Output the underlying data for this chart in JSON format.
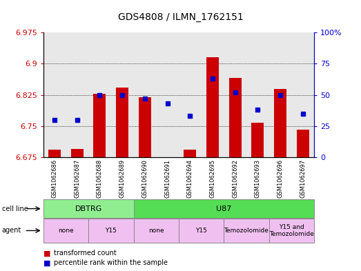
{
  "title": "GDS4808 / ILMN_1762151",
  "samples": [
    "GSM1062686",
    "GSM1062687",
    "GSM1062688",
    "GSM1062689",
    "GSM1062690",
    "GSM1062691",
    "GSM1062694",
    "GSM1062695",
    "GSM1062692",
    "GSM1062693",
    "GSM1062696",
    "GSM1062697"
  ],
  "transformed_count": [
    6.693,
    6.695,
    6.828,
    6.843,
    6.82,
    6.67,
    6.693,
    6.915,
    6.865,
    6.758,
    6.84,
    6.742
  ],
  "percentile_rank": [
    30,
    30,
    50,
    50,
    47,
    43,
    33,
    63,
    52,
    38,
    50,
    35
  ],
  "y_min": 6.675,
  "y_max": 6.975,
  "y_ticks": [
    6.675,
    6.75,
    6.825,
    6.9,
    6.975
  ],
  "right_y_ticks": [
    0,
    25,
    50,
    75,
    100
  ],
  "bar_color": "#cc0000",
  "dot_color": "#0000cc",
  "cell_line_groups": [
    {
      "label": "DBTRG",
      "start": 0,
      "end": 4,
      "color": "#90ee90"
    },
    {
      "label": "U87",
      "start": 4,
      "end": 12,
      "color": "#55dd55"
    }
  ],
  "agent_groups": [
    {
      "label": "none",
      "start": 0,
      "end": 2,
      "color": "#f0c0f0"
    },
    {
      "label": "Y15",
      "start": 2,
      "end": 4,
      "color": "#f0c0f0"
    },
    {
      "label": "none",
      "start": 4,
      "end": 6,
      "color": "#f0c0f0"
    },
    {
      "label": "Y15",
      "start": 6,
      "end": 8,
      "color": "#f0c0f0"
    },
    {
      "label": "Temozolomide",
      "start": 8,
      "end": 10,
      "color": "#f0c0f0"
    },
    {
      "label": "Y15 and\nTemozolomide",
      "start": 10,
      "end": 12,
      "color": "#f0c0f0"
    }
  ],
  "legend_red": "transformed count",
  "legend_blue": "percentile rank within the sample",
  "bg_color": "#ffffff",
  "plot_bg": "#e8e8e8"
}
